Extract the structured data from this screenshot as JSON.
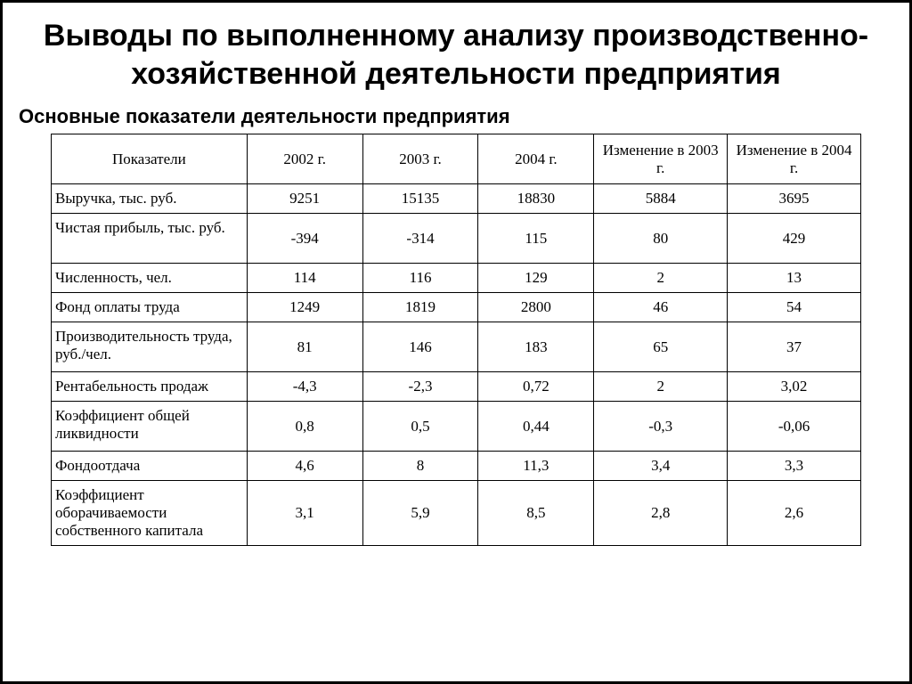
{
  "page": {
    "title": "Выводы по выполненному анализу производственно-хозяйственной деятельности предприятия",
    "subtitle": "Основные показатели деятельности предприятия"
  },
  "table": {
    "type": "table",
    "background_color": "#ffffff",
    "border_color": "#000000",
    "font_family": "Times New Roman",
    "header_fontsize": 17,
    "cell_fontsize": 17,
    "columns": [
      {
        "key": "indicator",
        "label": "Показатели",
        "align": "left",
        "width_pct": 22
      },
      {
        "key": "y2002",
        "label": "2002 г.",
        "align": "center",
        "width_pct": 13
      },
      {
        "key": "y2003",
        "label": "2003 г.",
        "align": "center",
        "width_pct": 13
      },
      {
        "key": "y2004",
        "label": "2004 г.",
        "align": "center",
        "width_pct": 13
      },
      {
        "key": "d2003",
        "label": "Изменение в 2003 г.",
        "align": "center",
        "width_pct": 15
      },
      {
        "key": "d2004",
        "label": "Изменение в 2004 г.",
        "align": "center",
        "width_pct": 15
      }
    ],
    "rows": [
      {
        "indicator": "Выручка, тыс. руб.",
        "y2002": "9251",
        "y2003": "15135",
        "y2004": "18830",
        "d2003": "5884",
        "d2004": "3695"
      },
      {
        "indicator": "Чистая прибыль, тыс. руб.",
        "y2002": "-394",
        "y2003": "-314",
        "y2004": "115",
        "d2003": "80",
        "d2004": "429"
      },
      {
        "indicator": "Численность, чел.",
        "y2002": "114",
        "y2003": "116",
        "y2004": "129",
        "d2003": "2",
        "d2004": "13"
      },
      {
        "indicator": "Фонд оплаты труда",
        "y2002": "1249",
        "y2003": "1819",
        "y2004": "2800",
        "d2003": "46",
        "d2004": "54"
      },
      {
        "indicator": "Производительность труда, руб./чел.",
        "y2002": "81",
        "y2003": "146",
        "y2004": "183",
        "d2003": "65",
        "d2004": "37"
      },
      {
        "indicator": "Рентабельность продаж",
        "y2002": "-4,3",
        "y2003": "-2,3",
        "y2004": "0,72",
        "d2003": "2",
        "d2004": "3,02"
      },
      {
        "indicator": "Коэффициент общей ликвидности",
        "y2002": "0,8",
        "y2003": "0,5",
        "y2004": "0,44",
        "d2003": "-0,3",
        "d2004": "-0,06"
      },
      {
        "indicator": "Фондоотдача",
        "y2002": "4,6",
        "y2003": "8",
        "y2004": "11,3",
        "d2003": "3,4",
        "d2004": "3,3"
      },
      {
        "indicator": "Коэффициент оборачиваемости собственного капитала",
        "y2002": "3,1",
        "y2003": "5,9",
        "y2004": "8,5",
        "d2003": "2,8",
        "d2004": "2,6"
      }
    ]
  }
}
